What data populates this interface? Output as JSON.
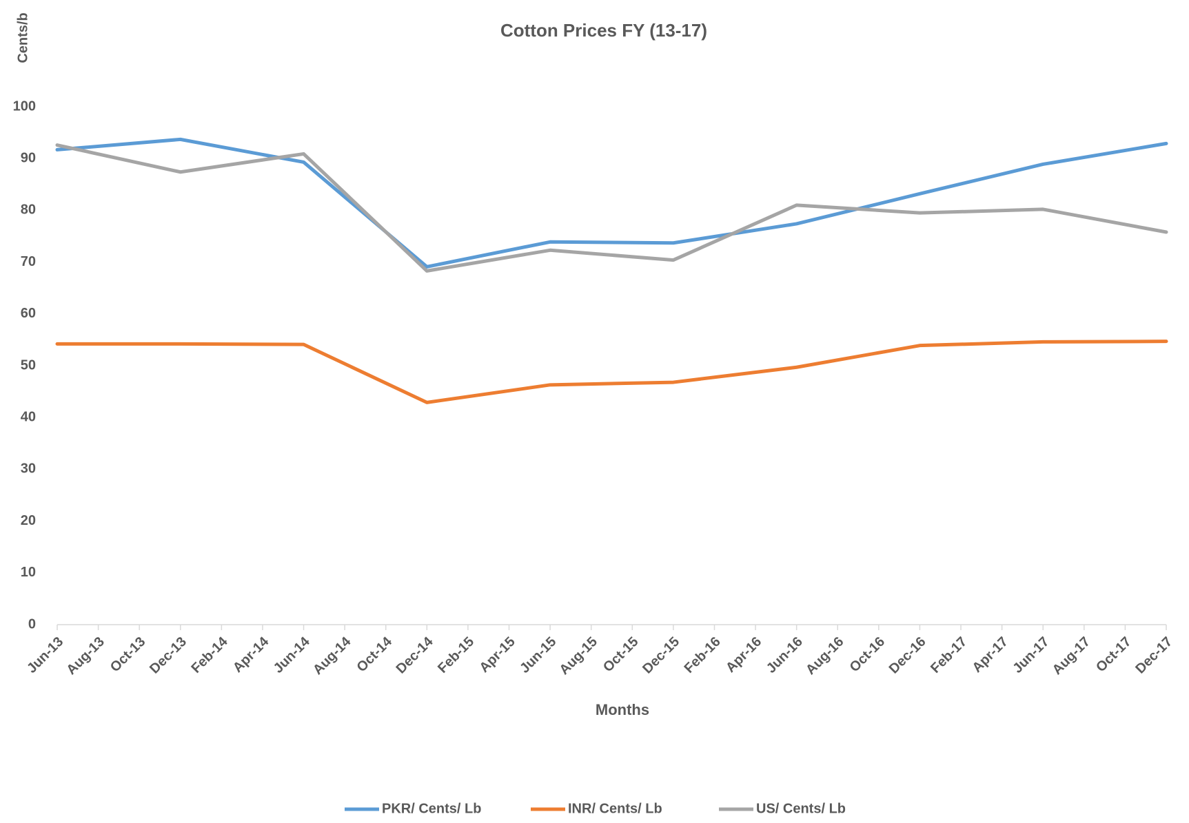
{
  "chart_data": {
    "type": "line",
    "title": "Cotton Prices FY (13-17)",
    "y_label": "Cents/b",
    "x_label": "Months",
    "xticks": [
      "Jun-13",
      "Aug-13",
      "Oct-13",
      "Dec-13",
      "Feb-14",
      "Apr-14",
      "Jun-14",
      "Aug-14",
      "Oct-14",
      "Dec-14",
      "Feb-15",
      "Apr-15",
      "Jun-15",
      "Aug-15",
      "Oct-15",
      "Dec-15",
      "Feb-16",
      "Apr-16",
      "Jun-16",
      "Aug-16",
      "Oct-16",
      "Dec-16",
      "Feb-17",
      "Apr-17",
      "Jun-17",
      "Aug-17",
      "Oct-17",
      "Dec-17"
    ],
    "x": [
      "Jun-13",
      "Dec-13",
      "Jun-14",
      "Dec-14",
      "Jun-15",
      "Dec-15",
      "Jun-16",
      "Dec-16",
      "Jun-17",
      "Dec-17"
    ],
    "series": [
      {
        "name": "PKR/ Cents/ Lb",
        "color": "#5b9bd5",
        "values": [
          91.7,
          93.7,
          89.3,
          69.1,
          73.9,
          73.7,
          77.4,
          83.2,
          88.9,
          92.9
        ]
      },
      {
        "name": "INR/ Cents/ Lb",
        "color": "#ed7d31",
        "values": [
          54.2,
          54.2,
          54.1,
          42.9,
          46.3,
          46.8,
          49.7,
          53.9,
          54.6,
          54.7
        ]
      },
      {
        "name": "US/ Cents/ Lb",
        "color": "#a5a5a5",
        "values": [
          92.6,
          87.4,
          90.9,
          68.3,
          72.3,
          70.4,
          81.0,
          79.5,
          80.2,
          75.8
        ]
      }
    ],
    "ylim": [
      0,
      100
    ],
    "yticks": [
      0,
      10,
      20,
      30,
      40,
      50,
      60,
      70,
      80,
      90,
      100
    ],
    "grid": false,
    "legend": "bottom"
  }
}
